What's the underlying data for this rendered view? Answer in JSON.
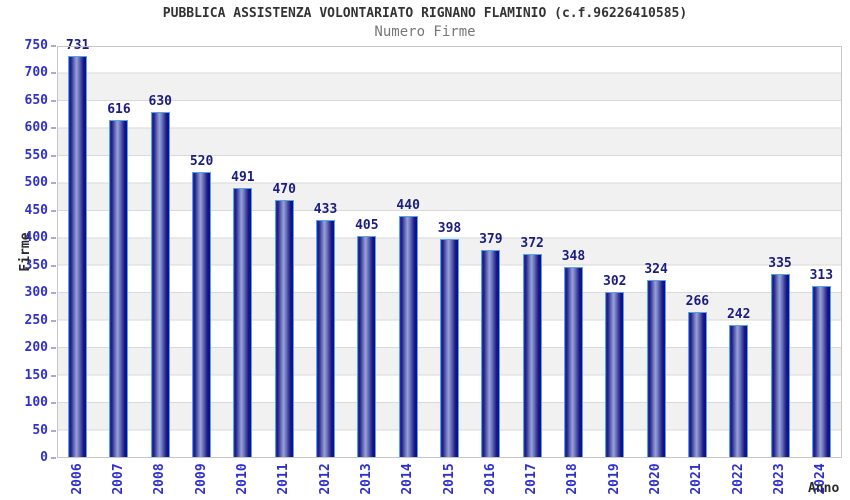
{
  "chart_data": {
    "type": "bar",
    "title": "PUBBLICA ASSISTENZA VOLONTARIATO RIGNANO FLAMINIO (c.f.96226410585)",
    "subtitle": "Numero Firme",
    "xlabel": "Anno",
    "ylabel": "Firme",
    "categories": [
      "2006",
      "2007",
      "2008",
      "2009",
      "2010",
      "2011",
      "2012",
      "2013",
      "2014",
      "2015",
      "2016",
      "2017",
      "2018",
      "2019",
      "2020",
      "2021",
      "2022",
      "2023",
      "2024"
    ],
    "values": [
      731,
      616,
      630,
      520,
      491,
      470,
      433,
      405,
      440,
      398,
      379,
      372,
      348,
      302,
      324,
      266,
      242,
      335,
      313
    ],
    "ylim": [
      0,
      750
    ],
    "ytick_step": 50,
    "grid": true,
    "legend": false,
    "bar_labels_shown": true,
    "colors": {
      "bar_dark": "#1c1d88",
      "bar_light": "#99a1d6",
      "bar_border": "#55a2ef",
      "value_label": "#1c1c80",
      "axis_tick_label": "#2f2fd0",
      "title": "#333333",
      "subtitle": "#777777",
      "band_gray": "#f1f1f1",
      "gridline": "#d9d9d9",
      "plot_border": "#c6c6c6",
      "tick_mark": "#a9a9e0"
    }
  }
}
